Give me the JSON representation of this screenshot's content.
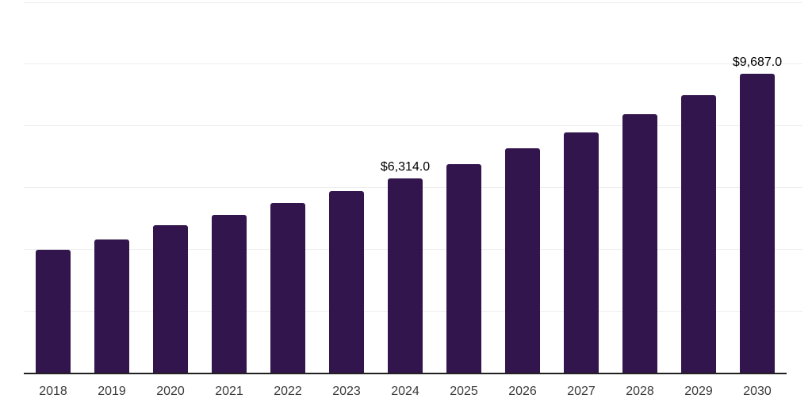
{
  "chart_data": {
    "type": "bar",
    "title": "",
    "xlabel": "",
    "ylabel": "",
    "categories": [
      "2018",
      "2019",
      "2020",
      "2021",
      "2022",
      "2023",
      "2024",
      "2025",
      "2026",
      "2027",
      "2028",
      "2029",
      "2030"
    ],
    "values": [
      3990,
      4320,
      4790,
      5110,
      5510,
      5880,
      6314,
      6770,
      7270,
      7780,
      8370,
      8990,
      9687
    ],
    "data_labels": [
      "",
      "",
      "",
      "",
      "",
      "",
      "$6,314.0",
      "",
      "",
      "",
      "",
      "",
      "$9,687.0"
    ],
    "ylim": [
      0,
      12000
    ],
    "gridline_step": 2000,
    "grid": true,
    "legend_position": "none",
    "colors": {
      "bar": "#32154D",
      "gridline": "#ededed",
      "axis_line": "#212121",
      "tick_label": "#3a3a3a",
      "data_label": "#000000",
      "background": "#ffffff"
    }
  }
}
